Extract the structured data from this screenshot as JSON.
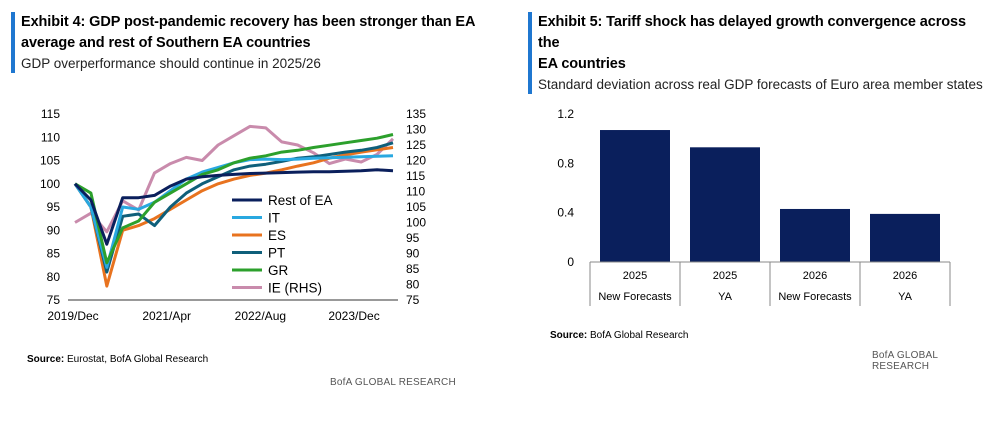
{
  "left_panel": {
    "title": "Exhibit 4: GDP post-pandemic recovery has been stronger than EA average and rest of Southern EA countries",
    "title_line1": "Exhibit 4: GDP post-pandemic recovery has been stronger than EA",
    "title_line2": "average and rest of Southern EA countries",
    "subtitle": "GDP overperformance should continue in 2025/26",
    "source_label": "Source:",
    "source_text": "Eurostat, BofA Global Research",
    "footer": "BofA GLOBAL RESEARCH"
  },
  "right_panel": {
    "title_line1": "Exhibit 5: Tariff shock has delayed growth convergence across the",
    "title_line2": "EA countries",
    "subtitle": "Standard deviation across real GDP forecasts of Euro area member states",
    "source_label": "Source:",
    "source_text": "BofA Global Research",
    "footer": "BofA GLOBAL RESEARCH"
  },
  "chart_data": [
    {
      "type": "line",
      "title": "Exhibit 4: GDP post-pandemic recovery has been stronger than EA average and rest of Southern EA countries",
      "x": [
        "2019/Dec",
        "2020/Mar",
        "2020/Jun",
        "2020/Sep",
        "2020/Dec",
        "2021/Mar",
        "2021/Jun",
        "2021/Sep",
        "2021/Dec",
        "2022/Mar",
        "2022/Jun",
        "2022/Sep",
        "2022/Dec",
        "2023/Mar",
        "2023/Jun",
        "2023/Sep",
        "2023/Dec",
        "2024/Mar",
        "2024/Jun",
        "2024/Sep",
        "2024/Dec"
      ],
      "xtick_labels": [
        "2019/Dec",
        "2021/Apr",
        "2022/Aug",
        "2023/Dec"
      ],
      "ylim_left": [
        75,
        115
      ],
      "yticks_left": [
        75,
        80,
        85,
        90,
        95,
        100,
        105,
        110,
        115
      ],
      "ylim_right": [
        75,
        135
      ],
      "yticks_right": [
        75,
        80,
        85,
        90,
        95,
        100,
        105,
        110,
        115,
        120,
        125,
        130,
        135
      ],
      "series": [
        {
          "name": "Rest of EA",
          "color": "#0a1f5c",
          "axis": "left",
          "values": [
            100,
            96.5,
            87,
            97,
            97,
            97.5,
            99.5,
            101,
            101.5,
            101.8,
            102,
            102.2,
            102.3,
            102.4,
            102.5,
            102.6,
            102.6,
            102.7,
            102.8,
            103.0,
            102.8
          ]
        },
        {
          "name": "IT",
          "color": "#29a8e0",
          "axis": "left",
          "values": [
            100,
            95,
            82,
            95,
            94.5,
            96,
            98.5,
            101,
            102.5,
            103.5,
            104.5,
            105.2,
            105.3,
            105.2,
            105.3,
            105.5,
            105.6,
            105.7,
            105.8,
            105.9,
            106.0
          ]
        },
        {
          "name": "ES",
          "color": "#e8731f",
          "axis": "left",
          "values": [
            100,
            95,
            78,
            90,
            91,
            92.5,
            94.5,
            96.5,
            98.5,
            100,
            101,
            101.8,
            102.3,
            103,
            103.8,
            104.5,
            105.5,
            106.2,
            106.8,
            107.3,
            107.8
          ]
        },
        {
          "name": "PT",
          "color": "#0f5f7a",
          "axis": "left",
          "values": [
            100,
            95,
            81,
            93,
            93.5,
            91,
            95,
            98,
            100,
            101.5,
            103,
            103.8,
            104.2,
            104.8,
            105.5,
            105.8,
            106.3,
            106.8,
            107.2,
            107.8,
            108.8
          ]
        },
        {
          "name": "GR",
          "color": "#2ca02c",
          "axis": "left",
          "values": [
            100,
            98,
            83,
            90.5,
            92,
            96,
            98,
            100,
            102,
            103,
            104.5,
            105.5,
            106,
            106.8,
            107.2,
            107.8,
            108.3,
            108.8,
            109.3,
            109.8,
            110.6
          ]
        },
        {
          "name": "IE (RHS)",
          "color": "#c98bac",
          "axis": "right",
          "values": [
            100,
            103,
            97,
            107,
            104,
            116,
            119,
            121,
            120,
            125,
            128,
            131,
            130.5,
            126,
            125,
            122.5,
            119,
            120.5,
            119.5,
            122,
            127
          ]
        }
      ]
    },
    {
      "type": "bar",
      "title": "Exhibit 5: Tariff shock has delayed growth convergence across the EA countries",
      "categories": [
        {
          "year": "2025",
          "label": "New Forecasts"
        },
        {
          "year": "2025",
          "label": "YA"
        },
        {
          "year": "2026",
          "label": "New Forecasts"
        },
        {
          "year": "2026",
          "label": "YA"
        }
      ],
      "values": [
        1.07,
        0.93,
        0.43,
        0.39
      ],
      "ylim": [
        0,
        1.2
      ],
      "yticks": [
        "0",
        "0.4",
        "0.8",
        "1.2"
      ],
      "bar_color": "#0a1f5c"
    }
  ]
}
